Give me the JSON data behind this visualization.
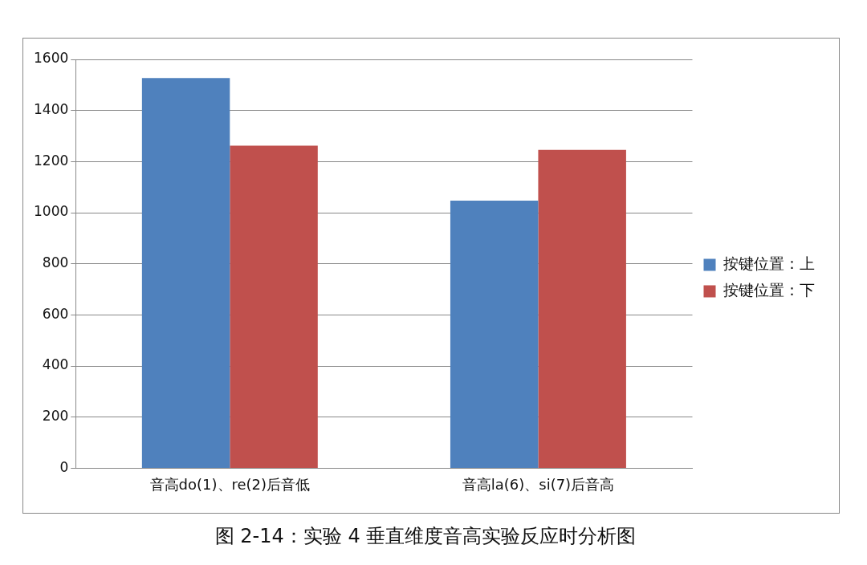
{
  "chart_data": {
    "type": "bar",
    "categories": [
      "音高do(1)、re(2)后音低",
      "音高la(6)、si(7)后音高"
    ],
    "series": [
      {
        "name": "按键位置：上",
        "color": "#4f81bd",
        "values": [
          1527,
          1047
        ]
      },
      {
        "name": "按键位置：下",
        "color": "#c0504d",
        "values": [
          1262,
          1246
        ]
      }
    ],
    "ylim": [
      0,
      1600
    ],
    "yticks": [
      0,
      200,
      400,
      600,
      800,
      1000,
      1200,
      1400,
      1600
    ],
    "grid": "y",
    "legend": "right",
    "annotations": [
      "图 2-14：实验 4 垂直维度音高实验反应时分析图"
    ]
  }
}
